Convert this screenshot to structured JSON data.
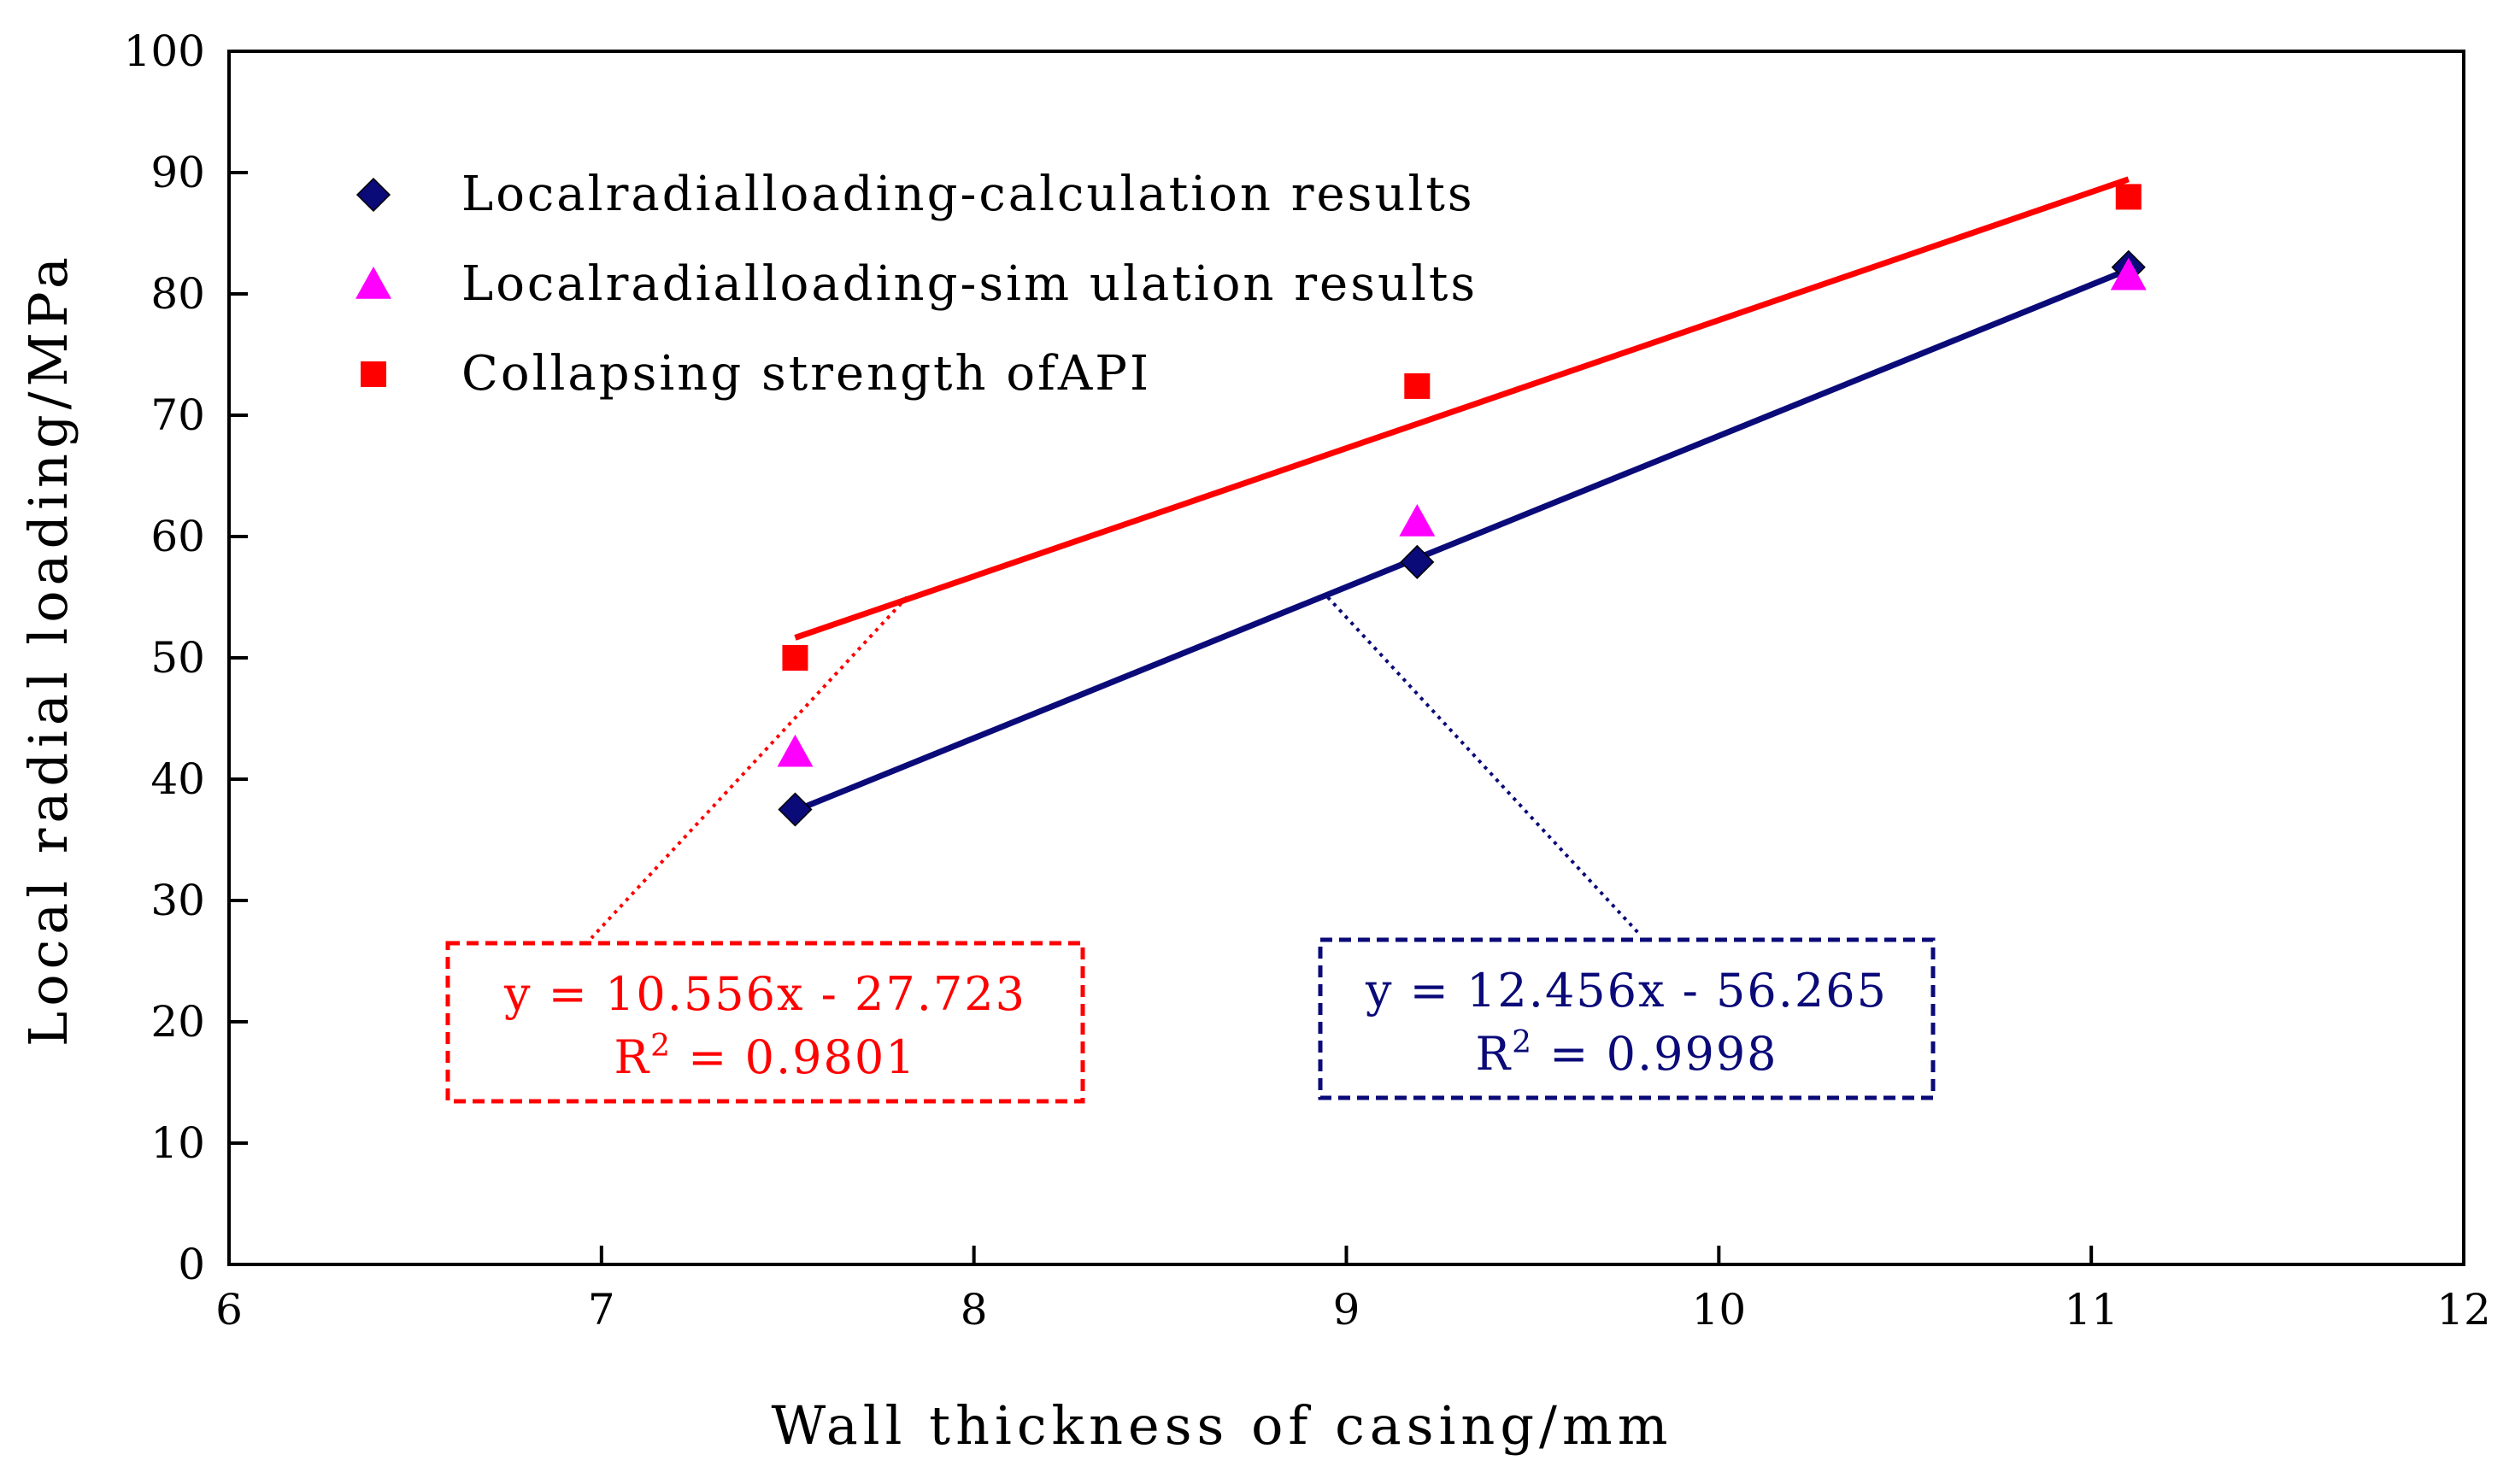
{
  "chart_data": {
    "type": "scatter",
    "title": "",
    "xlabel": "Wall thickness of casing/mm",
    "ylabel": "Local radial loading/MPa",
    "xlim": [
      6,
      12
    ],
    "ylim": [
      0,
      100
    ],
    "xticks": [
      6,
      7,
      8,
      9,
      10,
      11,
      12
    ],
    "yticks": [
      0,
      10,
      20,
      30,
      40,
      50,
      60,
      70,
      80,
      90,
      100
    ],
    "grid": false,
    "legend_position": "top-left",
    "series": [
      {
        "name": "Local radial loading-calculation results",
        "label": "Localradialloading-calculation results",
        "marker": "diamond",
        "color": "#0a0a78",
        "x": [
          7.52,
          9.19,
          11.1
        ],
        "y": [
          37.5,
          57.9,
          82.2
        ]
      },
      {
        "name": "Local radial loading-simulation results",
        "label": "Localradialloading-sim ulation results",
        "marker": "triangle",
        "color": "#ff00ff",
        "x": [
          7.52,
          9.19,
          11.1
        ],
        "y": [
          42.2,
          61.2,
          81.5
        ]
      },
      {
        "name": "Collapsing strength of API",
        "label": "Collapsing strength ofAPI",
        "marker": "square",
        "color": "#ff0000",
        "x": [
          7.52,
          9.19,
          11.1
        ],
        "y": [
          50.0,
          72.4,
          88.0
        ]
      }
    ],
    "trendlines": [
      {
        "series": "Collapsing strength of API",
        "color": "#ff0000",
        "slope": 10.556,
        "intercept": -27.723,
        "x_range": [
          7.52,
          11.1
        ],
        "equation": "y = 10.556x - 27.723",
        "r2_prefix": "R",
        "r2_sup": "2",
        "r2_value": " = 0.9801",
        "annotation_anchor": [
          7.82,
          55.0
        ],
        "annotation_box": "left"
      },
      {
        "series": "Local radial loading-calculation results",
        "color": "#0a0a78",
        "slope": 12.456,
        "intercept": -56.265,
        "x_range": [
          7.52,
          11.1
        ],
        "equation": "y = 12.456x - 56.265",
        "r2_prefix": "R",
        "r2_sup": "2",
        "r2_value": " = 0.9998",
        "annotation_anchor": [
          8.95,
          55.0
        ],
        "annotation_box": "right"
      }
    ]
  }
}
